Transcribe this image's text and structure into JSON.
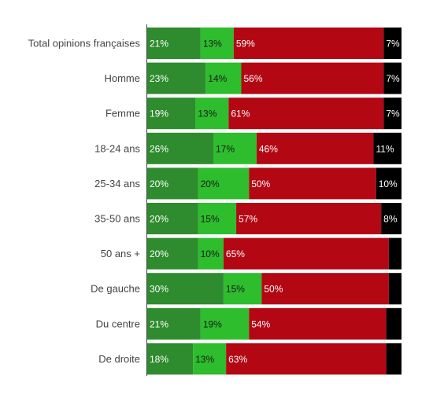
{
  "chart_data": {
    "type": "bar",
    "orientation": "horizontal",
    "stacked": true,
    "categories": [
      "Total opinions françaises",
      "Homme",
      "Femme",
      "18-24 ans",
      "25-34 ans",
      "35-50 ans",
      "50 ans +",
      "De gauche",
      "Du centre",
      "De droite"
    ],
    "series": [
      {
        "values": [
          21,
          23,
          19,
          26,
          20,
          20,
          20,
          30,
          21,
          18
        ],
        "labels": [
          "21%",
          "23%",
          "19%",
          "26%",
          "20%",
          "20%",
          "20%",
          "30%",
          "21%",
          "18%"
        ],
        "color": "#2e8b2e",
        "label_color": "#ffffff"
      },
      {
        "values": [
          13,
          14,
          13,
          17,
          20,
          15,
          10,
          15,
          19,
          13
        ],
        "labels": [
          "13%",
          "14%",
          "13%",
          "17%",
          "20%",
          "15%",
          "10%",
          "15%",
          "19%",
          "13%"
        ],
        "color": "#2dbd2d",
        "label_color": "#1a1a1a"
      },
      {
        "values": [
          59,
          56,
          61,
          46,
          50,
          57,
          65,
          50,
          54,
          63
        ],
        "labels": [
          "59%",
          "56%",
          "61%",
          "46%",
          "50%",
          "57%",
          "65%",
          "50%",
          "54%",
          "63%"
        ],
        "color": "#b30714",
        "label_color": "#ffffff"
      },
      {
        "values": [
          7,
          7,
          7,
          11,
          10,
          8,
          5,
          5,
          6,
          6
        ],
        "labels": [
          "7%",
          "7%",
          "7%",
          "11%",
          "10%",
          "8%",
          "",
          "",
          "",
          ""
        ],
        "color": "#000000",
        "label_color": "#ffffff"
      }
    ],
    "xlim": [
      0,
      100
    ],
    "grid": false,
    "legend": "none"
  }
}
